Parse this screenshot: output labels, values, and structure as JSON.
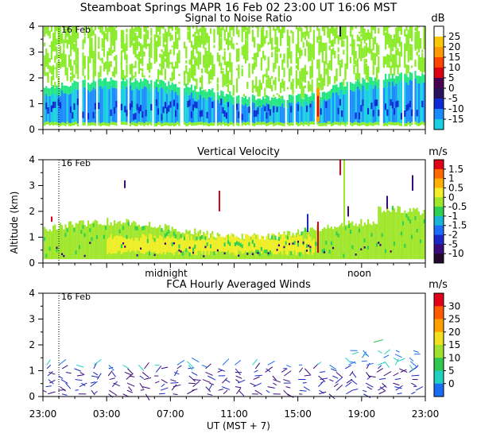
{
  "figure": {
    "title": "Steamboat Springs  MAPR 16 Feb 02  23:00 UT  16:06  MST",
    "x_axis_label": "UT  (MST + 7)",
    "y_axis_label": "Altitude (km)",
    "x_ticks": [
      "23:00",
      "03:00",
      "07:00",
      "11:00",
      "15:00",
      "19:00",
      "23:00"
    ],
    "midnight_label": "midnight",
    "noon_label": "noon"
  },
  "chart_data": [
    {
      "type": "heatmap",
      "title": "Signal to Noise Ratio",
      "unit": "dB",
      "date_marker": "16 Feb",
      "y_ticks": [
        "0",
        "1",
        "2",
        "3",
        "4"
      ],
      "ylim": [
        0,
        4
      ],
      "xlim_hours": [
        0,
        24
      ],
      "colorbar_labels": [
        "25",
        "20",
        "15",
        "10",
        "5",
        "0",
        "-5",
        "-10",
        "-15"
      ],
      "colors": [
        "#ffffff",
        "#f9c809",
        "#ff9a05",
        "#ff4300",
        "#dc0012",
        "#480050",
        "#28145a",
        "#0f2bd3",
        "#1a8cff",
        "#19cfe0",
        "#22e682",
        "#8ceb2d"
      ]
    },
    {
      "type": "heatmap",
      "title": "Vertical Velocity",
      "unit": "m/s",
      "date_marker": "16 Feb",
      "y_ticks": [
        "0",
        "1",
        "2",
        "3",
        "4"
      ],
      "ylim": [
        0,
        4
      ],
      "xlim_hours": [
        0,
        24
      ],
      "colorbar_labels": [
        "1.5",
        "1",
        "0.5",
        "0",
        "-0.5",
        "-1",
        "-1.5",
        "-2",
        "-5",
        "-10"
      ],
      "colors": [
        "#e0001a",
        "#ff6a00",
        "#ffb000",
        "#f2ef2a",
        "#a0e62a",
        "#30d050",
        "#1ab4d6",
        "#1c6dfa",
        "#1a28c8",
        "#3a0a7a",
        "#230a2a"
      ]
    },
    {
      "type": "vector-field",
      "title": "FCA Hourly Averaged Winds",
      "unit": "m/s",
      "date_marker": "16 Feb",
      "y_ticks": [
        "0",
        "1",
        "2",
        "3",
        "4"
      ],
      "ylim": [
        0,
        4
      ],
      "xlim_hours": [
        0,
        24
      ],
      "colorbar_labels": [
        "30",
        "25",
        "20",
        "15",
        "10",
        "5",
        "0"
      ],
      "colors": [
        "#e0001a",
        "#ff5a00",
        "#ffa000",
        "#f0e020",
        "#a0e030",
        "#30c850",
        "#20d0c0",
        "#1a6ef5",
        "#1a28c0",
        "#3a0a7a"
      ]
    }
  ]
}
